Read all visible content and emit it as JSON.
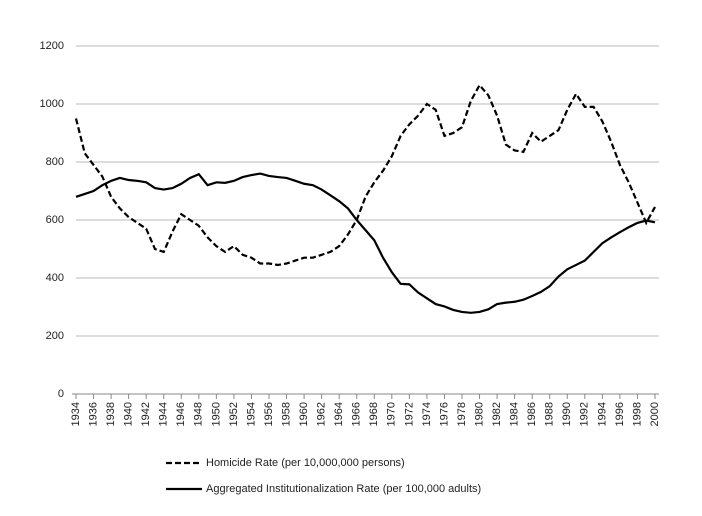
{
  "chart_data": {
    "type": "line",
    "x": [
      1934,
      1935,
      1936,
      1937,
      1938,
      1939,
      1940,
      1941,
      1942,
      1943,
      1944,
      1945,
      1946,
      1947,
      1948,
      1949,
      1950,
      1951,
      1952,
      1953,
      1954,
      1955,
      1956,
      1957,
      1958,
      1959,
      1960,
      1961,
      1962,
      1963,
      1964,
      1965,
      1966,
      1967,
      1968,
      1969,
      1970,
      1971,
      1972,
      1973,
      1974,
      1975,
      1976,
      1977,
      1978,
      1979,
      1980,
      1981,
      1982,
      1983,
      1984,
      1985,
      1986,
      1987,
      1988,
      1989,
      1990,
      1991,
      1992,
      1993,
      1994,
      1995,
      1996,
      1997,
      1998,
      1999,
      2000
    ],
    "series": [
      {
        "name": "Homicide Rate (per 10,000,000 persons)",
        "color": "#000000",
        "dashed": true,
        "values": [
          950,
          830,
          790,
          750,
          680,
          640,
          610,
          590,
          570,
          500,
          490,
          560,
          620,
          600,
          580,
          540,
          510,
          490,
          510,
          480,
          470,
          450,
          450,
          445,
          450,
          460,
          470,
          470,
          480,
          490,
          510,
          550,
          600,
          680,
          730,
          770,
          820,
          890,
          930,
          960,
          1000,
          980,
          890,
          900,
          920,
          1010,
          1065,
          1030,
          960,
          860,
          840,
          835,
          900,
          870,
          890,
          910,
          980,
          1035,
          990,
          990,
          940,
          870,
          790,
          730,
          660,
          590,
          645
        ]
      },
      {
        "name": "Aggregated Institutionalization Rate (per 100,000 adults)",
        "color": "#000000",
        "dashed": false,
        "values": [
          680,
          690,
          700,
          720,
          735,
          745,
          738,
          735,
          730,
          710,
          705,
          710,
          725,
          745,
          758,
          720,
          730,
          728,
          735,
          748,
          755,
          760,
          752,
          748,
          745,
          735,
          725,
          720,
          705,
          685,
          665,
          640,
          600,
          565,
          530,
          470,
          420,
          380,
          378,
          350,
          330,
          310,
          302,
          290,
          283,
          280,
          283,
          292,
          310,
          315,
          318,
          325,
          338,
          352,
          372,
          405,
          430,
          445,
          460,
          490,
          520,
          540,
          558,
          575,
          590,
          598,
          592
        ]
      }
    ],
    "xlim": [
      1934,
      2000
    ],
    "xticks": [
      1934,
      1936,
      1938,
      1940,
      1942,
      1944,
      1946,
      1948,
      1950,
      1952,
      1954,
      1956,
      1958,
      1960,
      1962,
      1964,
      1966,
      1968,
      1970,
      1972,
      1974,
      1976,
      1978,
      1980,
      1982,
      1984,
      1986,
      1988,
      1990,
      1992,
      1994,
      1996,
      1998,
      2000
    ],
    "ylim": [
      0,
      1200
    ],
    "yticks": [
      0,
      200,
      400,
      600,
      800,
      1000,
      1200
    ],
    "grid": true,
    "legend": "bottom"
  }
}
